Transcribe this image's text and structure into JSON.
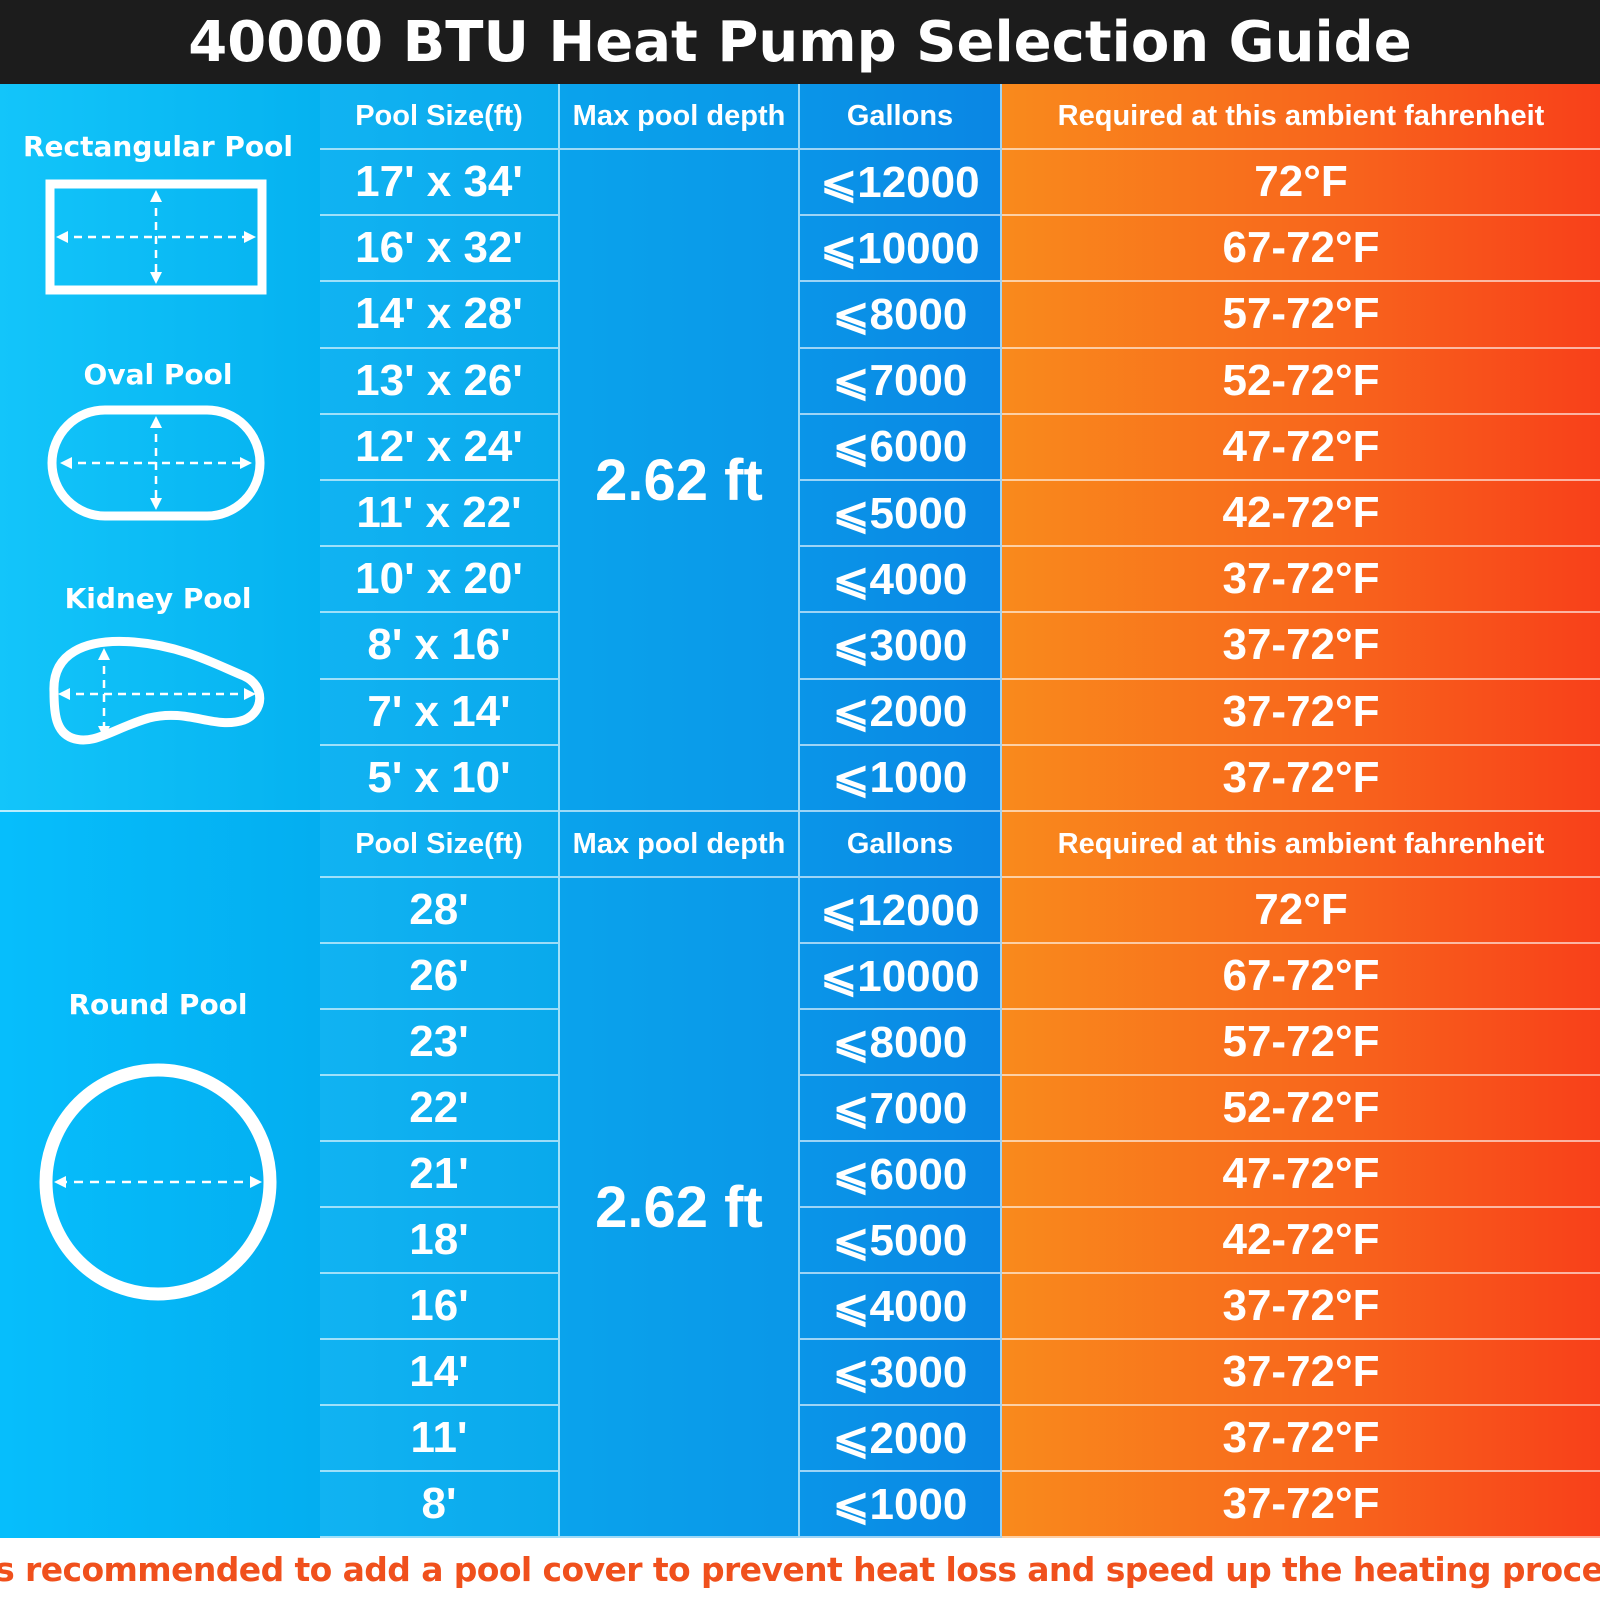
{
  "title": "40000 BTU Heat Pump Selection Guide",
  "headers": {
    "pool_size": "Pool Size(ft)",
    "max_depth": "Max pool depth",
    "gallons": "Gallons",
    "ambient": "Required at this ambient fahrenheit"
  },
  "rect_section": {
    "shapes": {
      "rectangular": "Rectangular Pool",
      "oval": "Oval Pool",
      "kidney": "Kidney Pool"
    },
    "depth": "2.62 ft",
    "rows": [
      {
        "size": "17' x 34'",
        "gallons": "⩽12000",
        "temp": "72°F"
      },
      {
        "size": "16' x 32'",
        "gallons": "⩽10000",
        "temp": "67-72°F"
      },
      {
        "size": "14' x 28'",
        "gallons": "⩽8000",
        "temp": "57-72°F"
      },
      {
        "size": "13' x 26'",
        "gallons": "⩽7000",
        "temp": "52-72°F"
      },
      {
        "size": "12' x 24'",
        "gallons": "⩽6000",
        "temp": "47-72°F"
      },
      {
        "size": "11' x 22'",
        "gallons": "⩽5000",
        "temp": "42-72°F"
      },
      {
        "size": "10' x 20'",
        "gallons": "⩽4000",
        "temp": "37-72°F"
      },
      {
        "size": "8' x 16'",
        "gallons": "⩽3000",
        "temp": "37-72°F"
      },
      {
        "size": "7' x 14'",
        "gallons": "⩽2000",
        "temp": "37-72°F"
      },
      {
        "size": "5' x 10'",
        "gallons": "⩽1000",
        "temp": "37-72°F"
      }
    ]
  },
  "round_section": {
    "shapes": {
      "round": "Round Pool"
    },
    "depth": "2.62 ft",
    "rows": [
      {
        "size": "28'",
        "gallons": "⩽12000",
        "temp": "72°F"
      },
      {
        "size": "26'",
        "gallons": "⩽10000",
        "temp": "67-72°F"
      },
      {
        "size": "23'",
        "gallons": "⩽8000",
        "temp": "57-72°F"
      },
      {
        "size": "22'",
        "gallons": "⩽7000",
        "temp": "52-72°F"
      },
      {
        "size": "21'",
        "gallons": "⩽6000",
        "temp": "47-72°F"
      },
      {
        "size": "18'",
        "gallons": "⩽5000",
        "temp": "42-72°F"
      },
      {
        "size": "16'",
        "gallons": "⩽4000",
        "temp": "37-72°F"
      },
      {
        "size": "14'",
        "gallons": "⩽3000",
        "temp": "37-72°F"
      },
      {
        "size": "11'",
        "gallons": "⩽2000",
        "temp": "37-72°F"
      },
      {
        "size": "8'",
        "gallons": "⩽1000",
        "temp": "37-72°F"
      }
    ]
  },
  "footer": "It is recommended to add a pool cover to prevent heat loss and speed up the heating process.",
  "colors": {
    "title_bg": "#1c1c1c",
    "blue": "#0aa9ec",
    "orange_start": "#f98a1c",
    "orange_end": "#f8401a",
    "footer_text": "#f0501c"
  }
}
